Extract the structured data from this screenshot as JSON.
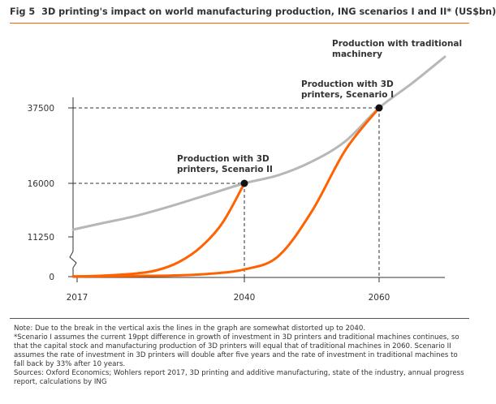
{
  "figure": {
    "number": "Fig 5",
    "title": "3D printing's impact on world manufacturing production, ING scenarios I and II* (US$bn)"
  },
  "chart_data": {
    "type": "line",
    "title": "3D printing's impact on world manufacturing production, ING scenarios I and II* (US$bn)",
    "x_ticks": [
      "2017",
      "2040",
      "2060"
    ],
    "y_ticks": [
      "0",
      "11250",
      "16000",
      "37500"
    ],
    "axis_break": "between 0 and 11250",
    "xlim": [
      2016,
      2070
    ],
    "series": [
      {
        "key": "traditional",
        "x": [
          2016,
          2020,
          2025,
          2030,
          2035,
          2040,
          2045,
          2050,
          2055,
          2060,
          2065,
          2070
        ],
        "y": [
          11900,
          12400,
          13100,
          14000,
          15000,
          16000,
          18300,
          22200,
          28000,
          37500,
          44000,
          51000
        ]
      },
      {
        "key": "scenario1",
        "x": [
          2016,
          2020,
          2025,
          2030,
          2035,
          2040,
          2045,
          2050,
          2055,
          2060
        ],
        "y": [
          100,
          200,
          400,
          700,
          1300,
          2500,
          6000,
          13500,
          25500,
          37500
        ]
      },
      {
        "key": "scenario2",
        "x": [
          2016,
          2020,
          2025,
          2028,
          2031,
          2034,
          2037,
          2040
        ],
        "y": [
          100,
          500,
          1400,
          2300,
          4500,
          8500,
          12500,
          16000
        ]
      }
    ],
    "annotations": [
      {
        "lines": [
          "Production with traditional",
          "machinery"
        ],
        "x": 2070,
        "y": 51000
      },
      {
        "lines": [
          "Production with 3D",
          "printers, Scenario I"
        ],
        "x": 2060,
        "y": 37500
      },
      {
        "lines": [
          "Production with 3D",
          "printers, Scenario II"
        ],
        "x": 2040,
        "y": 16000
      }
    ],
    "markers": [
      {
        "x": 2040,
        "y": 16000
      },
      {
        "x": 2060,
        "y": 37500
      }
    ],
    "colors": {
      "traditional": "#b7b7b7",
      "scenario": "#ff6200",
      "axis": "#333333"
    }
  },
  "notes": [
    "Note: Due to the break in the vertical axis the lines in the graph are somewhat distorted up to 2040.",
    "*Scenario I assumes the current 19ppt difference in growth of investment in 3D printers and traditional machines continues, so that the capital stock and manufacturing production of 3D printers will equal that of traditional machines in 2060. Scenario II assumes the rate of investment in 3D printers will double after five years and the rate of investment in traditional machines to fall back by 33% after 10 years.",
    "Sources: Oxford Economics; Wohlers report 2017, 3D printing and additive manufacturing, state of the industry, annual progress report, calculations by ING"
  ]
}
